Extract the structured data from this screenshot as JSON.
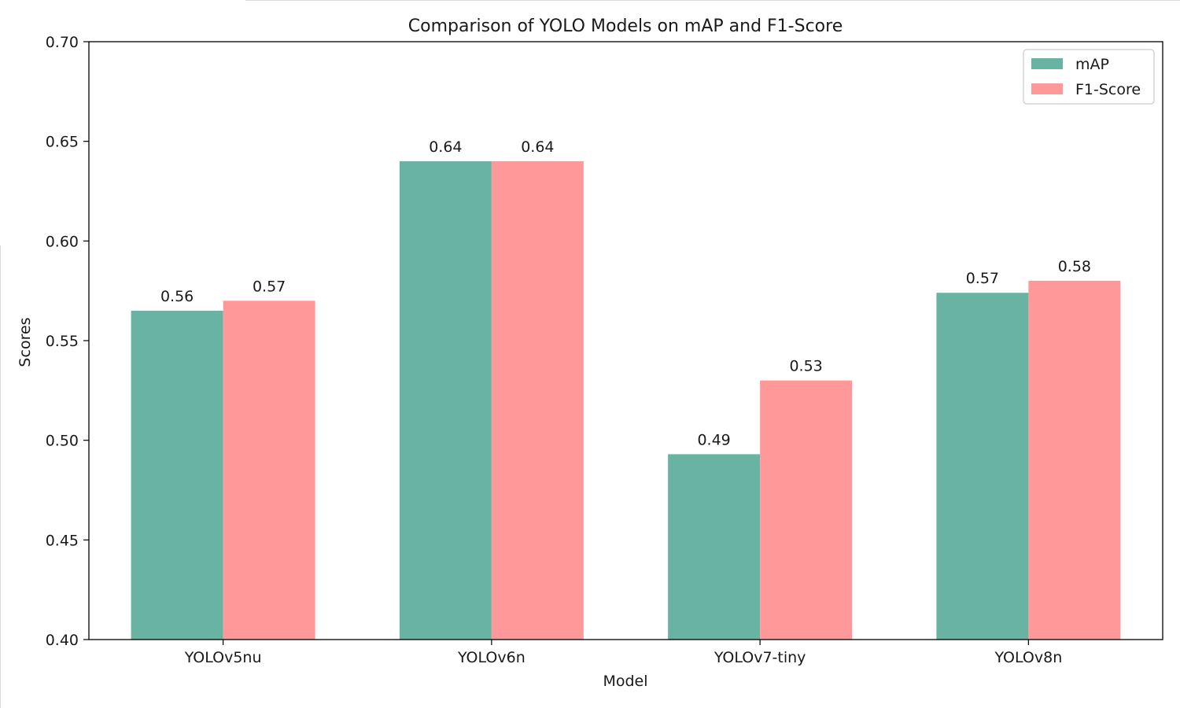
{
  "chart_data": {
    "type": "bar",
    "title": "Comparison of YOLO Models on mAP and F1-Score",
    "xlabel": "Model",
    "ylabel": "Scores",
    "categories": [
      "YOLOv5nu",
      "YOLOv6n",
      "YOLOv7-tiny",
      "YOLOv8n"
    ],
    "series": [
      {
        "name": "mAP",
        "color": "#69b3a2",
        "values": [
          0.565,
          0.64,
          0.493,
          0.574
        ],
        "labels": [
          "0.56",
          "0.64",
          "0.49",
          "0.57"
        ]
      },
      {
        "name": "F1-Score",
        "color": "#ff9999",
        "values": [
          0.57,
          0.64,
          0.53,
          0.58
        ],
        "labels": [
          "0.57",
          "0.64",
          "0.53",
          "0.58"
        ]
      }
    ],
    "ylim": [
      0.4,
      0.7
    ],
    "yticks": [
      "0.40",
      "0.45",
      "0.50",
      "0.55",
      "0.60",
      "0.65",
      "0.70"
    ],
    "legend_position": "upper right",
    "grid": false
  }
}
